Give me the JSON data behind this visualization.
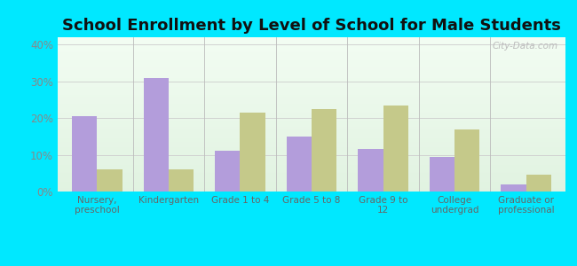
{
  "title": "School Enrollment by Level of School for Male Students",
  "categories": [
    "Nursery,\npreschool",
    "Kindergarten",
    "Grade 1 to 4",
    "Grade 5 to 8",
    "Grade 9 to\n12",
    "College\nundergrad",
    "Graduate or\nprofessional"
  ],
  "hudson_values": [
    20.5,
    31.0,
    11.0,
    15.0,
    11.5,
    9.5,
    2.0
  ],
  "texas_values": [
    6.0,
    6.0,
    21.5,
    22.5,
    23.5,
    17.0,
    4.5
  ],
  "hudson_color": "#b39ddb",
  "texas_color": "#c5c98a",
  "background_color": "#00e8ff",
  "ylim": [
    0,
    42
  ],
  "yticks": [
    0,
    10,
    20,
    30,
    40
  ],
  "ytick_labels": [
    "0%",
    "10%",
    "20%",
    "30%",
    "40%"
  ],
  "bar_width": 0.35,
  "title_fontsize": 13,
  "watermark": "City-Data.com"
}
